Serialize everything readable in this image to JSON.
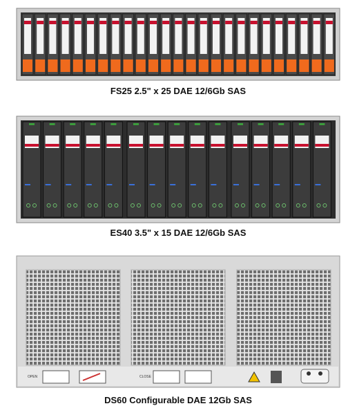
{
  "enclosures": [
    {
      "caption": "FS25 2.5\" x 25 DAE 12/6Gb SAS"
    },
    {
      "caption": "ES40 3.5\" x 15 DAE 12/6Gb SAS"
    },
    {
      "caption": "DS60 Configurable DAE 12Gb SAS",
      "open_label": "OPEN",
      "close_label": "CLOSE"
    }
  ]
}
